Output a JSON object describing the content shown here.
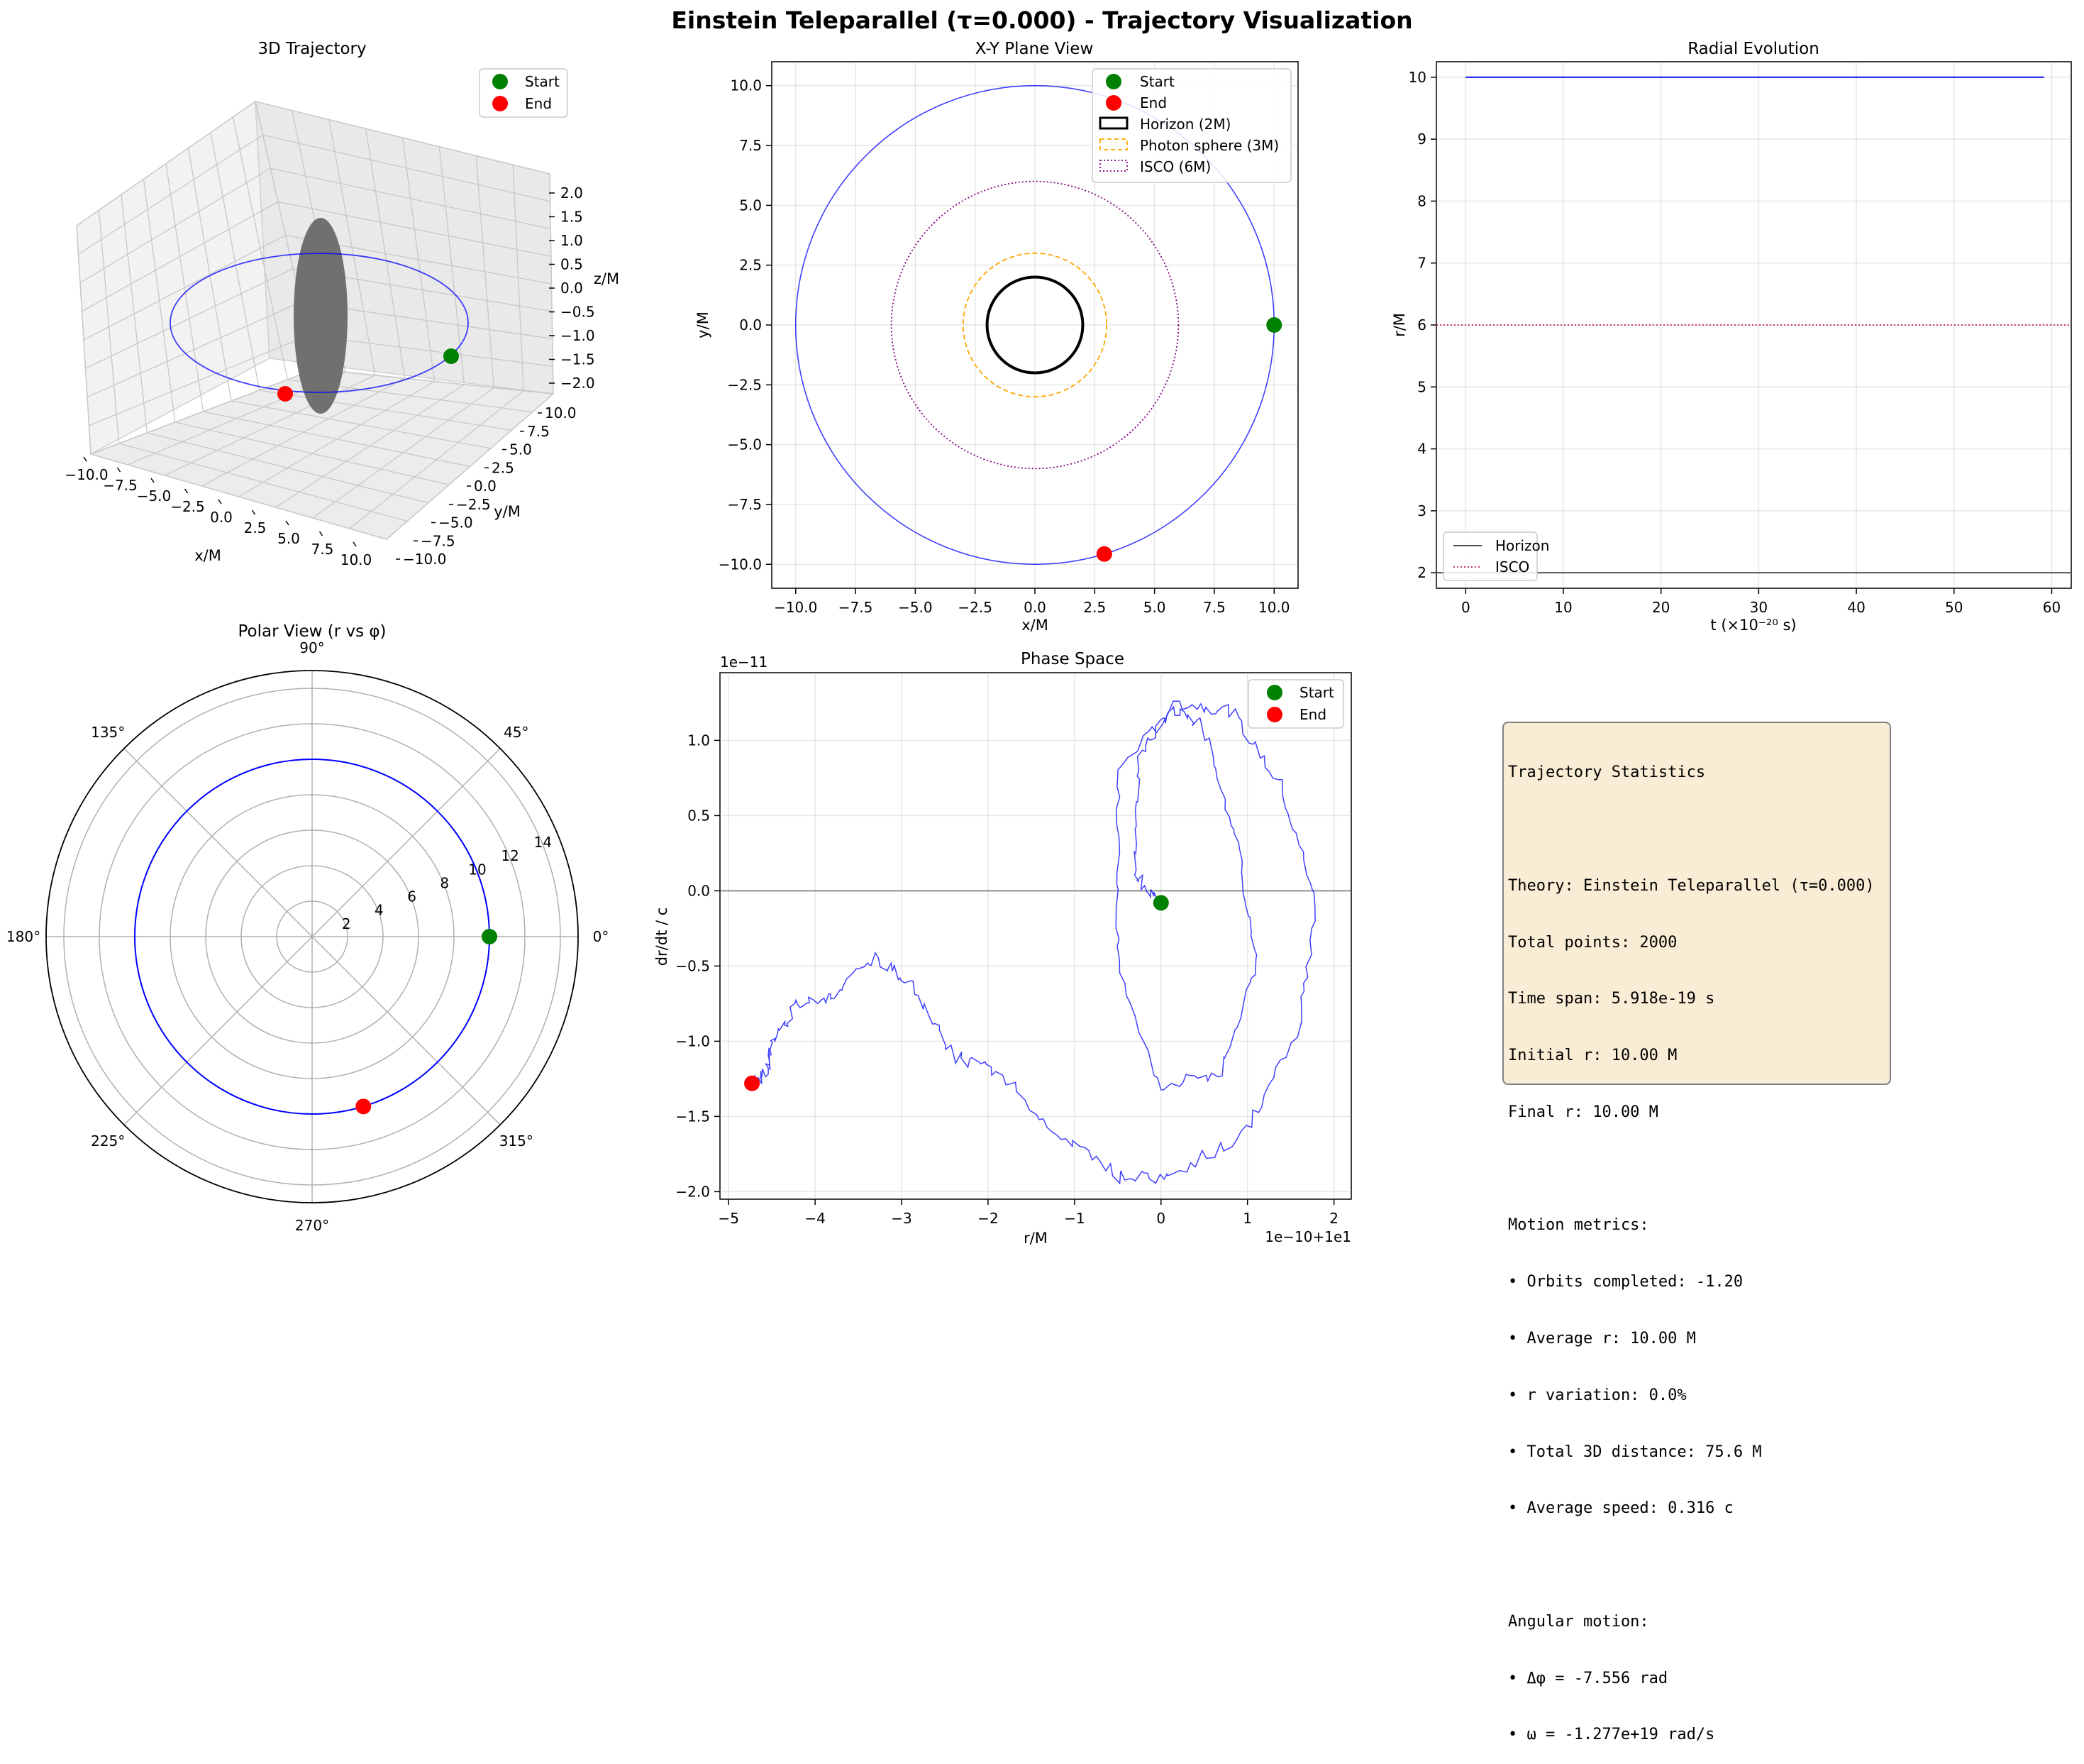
{
  "figure": {
    "suptitle": "Einstein Teleparallel (τ=0.000) - Trajectory Visualization"
  },
  "colors": {
    "orbit": "#0000ff",
    "start": "#008000",
    "end": "#ff0000",
    "horizon": "#000000",
    "photon_sphere": "#ffa500",
    "isco": "#800080",
    "horizon_line": "#555555",
    "isco_line": "#cc3377"
  },
  "chart_data": [
    {
      "panel": "3d",
      "type": "line",
      "title": "3D Trajectory",
      "xlabel": "x/M",
      "ylabel": "y/M",
      "zlabel": "z/M",
      "xlim": [
        -10,
        10
      ],
      "ylim": [
        -10,
        10
      ],
      "zlim": [
        -2,
        2
      ],
      "x_ticks": [
        "−10.0",
        "−7.5",
        "−5.0",
        "−2.5",
        "0.0",
        "2.5",
        "5.0",
        "7.5",
        "10.0"
      ],
      "y_ticks": [
        "−10.0",
        "−7.5",
        "−5.0",
        "−2.5",
        "0.0",
        "2.5",
        "5.0",
        "7.5",
        "10.0"
      ],
      "z_ticks": [
        "−2.0",
        "−1.5",
        "−1.0",
        "−0.5",
        "0.0",
        "0.5",
        "1.0",
        "1.5",
        "2.0"
      ],
      "orbit_radius": 10,
      "start": {
        "x": 10.0,
        "y": 0.0,
        "z": 0.0
      },
      "end": {
        "x": 2.9,
        "y": -9.57,
        "z": 0.0
      },
      "horizon_radius": 2,
      "legend": [
        "Start",
        "End"
      ],
      "legend_position": "upper right"
    },
    {
      "panel": "xy",
      "type": "line",
      "title": "X-Y Plane View",
      "xlabel": "x/M",
      "ylabel": "y/M",
      "xlim": [
        -11,
        11
      ],
      "ylim": [
        -11,
        11
      ],
      "x_ticks": [
        -10.0,
        -7.5,
        -5.0,
        -2.5,
        0.0,
        2.5,
        5.0,
        7.5,
        10.0
      ],
      "y_ticks": [
        -10.0,
        -7.5,
        -5.0,
        -2.5,
        0.0,
        2.5,
        5.0,
        7.5,
        10.0
      ],
      "tick_labels": [
        "−10.0",
        "−7.5",
        "−5.0",
        "−2.5",
        "0.0",
        "2.5",
        "5.0",
        "7.5",
        "10.0"
      ],
      "orbit_radius": 10,
      "circles": [
        {
          "name": "Horizon (2M)",
          "r": 2
        },
        {
          "name": "Photon sphere (3M)",
          "r": 3
        },
        {
          "name": "ISCO (6M)",
          "r": 6
        }
      ],
      "start": {
        "x": 10.0,
        "y": 0.0
      },
      "end": {
        "x": 2.9,
        "y": -9.57
      },
      "legend": [
        "Start",
        "End",
        "Horizon (2M)",
        "Photon sphere (3M)",
        "ISCO (6M)"
      ],
      "legend_position": "upper right",
      "grid": true
    },
    {
      "panel": "radial",
      "type": "line",
      "title": "Radial Evolution",
      "xlabel": "t (×10⁻²⁰ s)",
      "ylabel": "r/M",
      "xlim": [
        -3,
        62
      ],
      "ylim": [
        1.75,
        10.25
      ],
      "x_ticks": [
        0,
        10,
        20,
        30,
        40,
        50,
        60
      ],
      "y_ticks": [
        2,
        3,
        4,
        5,
        6,
        7,
        8,
        9,
        10
      ],
      "series": [
        {
          "x": [
            0,
            59.2
          ],
          "y": [
            10,
            10
          ]
        },
        {
          "name": "Horizon",
          "x": [
            -3,
            62
          ],
          "y": [
            2,
            2
          ]
        },
        {
          "name": "ISCO",
          "x": [
            -3,
            62
          ],
          "y": [
            6,
            6
          ]
        }
      ],
      "legend": [
        "Horizon",
        "ISCO"
      ],
      "legend_position": "lower left",
      "grid": true
    },
    {
      "panel": "polar",
      "type": "line",
      "title": "Polar View (r vs φ)",
      "r_max": 15,
      "r_ticks": [
        2,
        4,
        6,
        8,
        10,
        12,
        14
      ],
      "angle_ticks": [
        "0°",
        "45°",
        "90°",
        "135°",
        "180°",
        "225°",
        "270°",
        "315°"
      ],
      "orbit_radius": 10,
      "phi_start_deg": 0,
      "phi_end_deg": -73.2,
      "start": {
        "r": 10,
        "phi_deg": 0
      },
      "end": {
        "r": 10,
        "phi_deg": -73.2
      },
      "grid": true
    },
    {
      "panel": "phase",
      "type": "line",
      "title": "Phase Space",
      "xlabel": "r/M",
      "ylabel": "dr/dt / c",
      "x_offset_label": "1e−10+1e1",
      "y_scale_label": "1e−11",
      "xlim": [
        -5.1,
        2.2
      ],
      "ylim": [
        -2.05,
        1.45
      ],
      "x_ticks": [
        -5,
        -4,
        -3,
        -2,
        -1,
        0,
        1,
        2
      ],
      "y_ticks": [
        -2.0,
        -1.5,
        -1.0,
        -0.5,
        0.0,
        0.5,
        1.0
      ],
      "x_tick_labels": [
        "−5",
        "−4",
        "−3",
        "−2",
        "−1",
        "0",
        "1",
        "2"
      ],
      "y_tick_labels": [
        "−2.0",
        "−1.5",
        "−1.0",
        "−0.5",
        "0.0",
        "0.5",
        "1.0"
      ],
      "trace_path": [
        [
          0.0,
          -0.08
        ],
        [
          -0.3,
          0.1
        ],
        [
          -0.25,
          0.9
        ],
        [
          0.1,
          1.2
        ],
        [
          0.5,
          1.1
        ],
        [
          0.9,
          0.3
        ],
        [
          1.1,
          -0.5
        ],
        [
          0.7,
          -1.2
        ],
        [
          0.0,
          -1.3
        ],
        [
          -0.5,
          -0.5
        ],
        [
          -0.5,
          0.8
        ],
        [
          0.2,
          1.25
        ],
        [
          0.8,
          1.2
        ],
        [
          1.4,
          0.7
        ],
        [
          1.8,
          -0.1
        ],
        [
          1.6,
          -0.9
        ],
        [
          1.0,
          -1.6
        ],
        [
          0.1,
          -1.9
        ],
        [
          -0.5,
          -1.9
        ],
        [
          -1.2,
          -1.6
        ],
        [
          -1.9,
          -1.2
        ],
        [
          -2.4,
          -1.1
        ],
        [
          -2.9,
          -0.6
        ],
        [
          -3.3,
          -0.45
        ],
        [
          -3.8,
          -0.7
        ],
        [
          -4.2,
          -0.75
        ],
        [
          -4.5,
          -1.0
        ],
        [
          -4.55,
          -1.2
        ],
        [
          -4.73,
          -1.28
        ]
      ],
      "start": {
        "x": 0.0,
        "y": -0.08
      },
      "end": {
        "x": -4.73,
        "y": -1.28
      },
      "legend": [
        "Start",
        "End"
      ],
      "legend_position": "upper right",
      "grid": true
    }
  ],
  "stats": {
    "title": "Trajectory Statistics",
    "theory": "Theory: Einstein Teleparallel (τ=0.000)",
    "total_points": "Total points: 2000",
    "time_span": "Time span: 5.918e-19 s",
    "initial_r": "Initial r: 10.00 M",
    "final_r": "Final r: 10.00 M",
    "motion_header": "Motion metrics:",
    "orbits": "• Orbits completed: -1.20",
    "avg_r": "• Average r: 10.00 M",
    "r_var": "• r variation: 0.0%",
    "distance": "• Total 3D distance: 75.6 M",
    "speed": "• Average speed: 0.316 c",
    "angular_header": "Angular motion:",
    "dphi": "• Δφ = -7.556 rad",
    "omega": "• ω = -1.277e+19 rad/s"
  }
}
